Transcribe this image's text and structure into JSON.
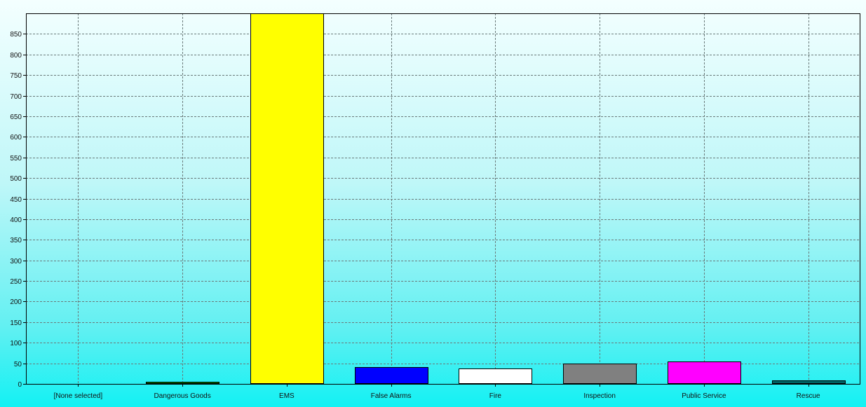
{
  "chart_data": {
    "type": "bar",
    "title": "",
    "xlabel": "",
    "ylabel": "",
    "categories": [
      "[None selected]",
      "Dangerous Goods",
      "EMS",
      "False Alarms",
      "Fire",
      "Inspection",
      "Public Service",
      "Rescue"
    ],
    "values": [
      0,
      5,
      920,
      40,
      38,
      50,
      55,
      8
    ],
    "colors": [
      "#000000",
      "#008000",
      "#ffff00",
      "#0000ff",
      "#ffffff",
      "#808080",
      "#ff00ff",
      "#006464"
    ],
    "ylim": [
      0,
      900
    ],
    "yticks": [
      0,
      50,
      100,
      150,
      200,
      250,
      300,
      350,
      400,
      450,
      500,
      550,
      600,
      650,
      700,
      750,
      800,
      850
    ],
    "grid": true,
    "legend": "none",
    "background_top": "#f4ffff",
    "background_bottom": "#13f1f3"
  }
}
